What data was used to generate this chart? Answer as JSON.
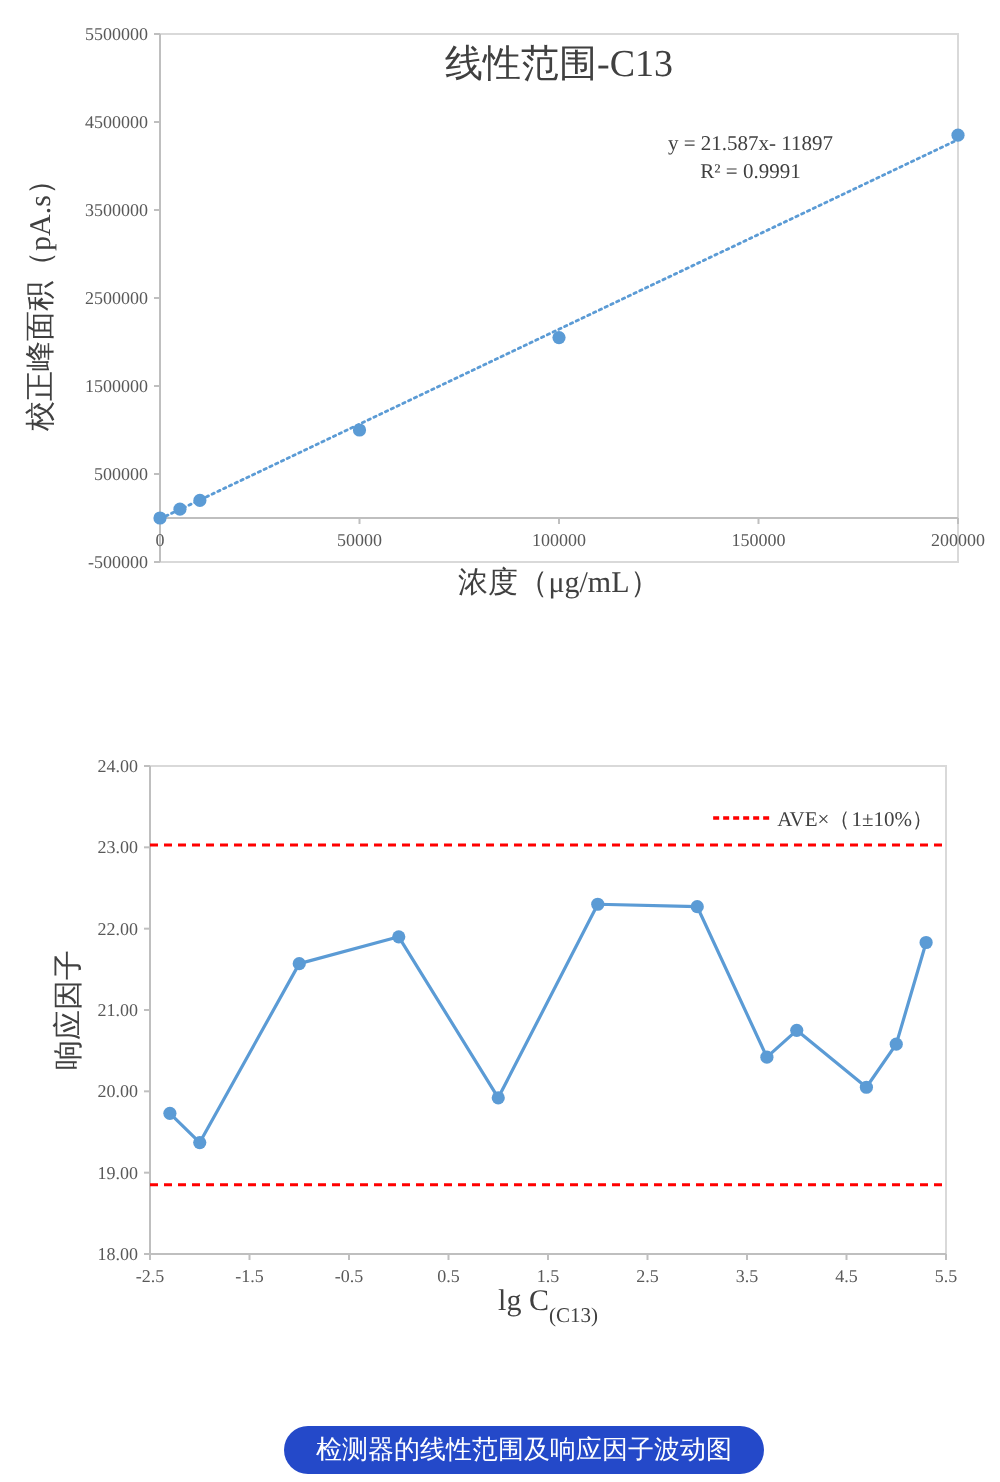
{
  "chart_data": [
    {
      "type": "scatter",
      "title": "线性范围-C13",
      "xlabel": "浓度（μg/mL）",
      "ylabel": "校正峰面积（pA.s）",
      "xlim": [
        0,
        200000
      ],
      "xticks": [
        0,
        50000,
        100000,
        150000,
        200000
      ],
      "ylim": [
        -500000,
        5500000
      ],
      "yticks": [
        -500000,
        500000,
        1500000,
        2500000,
        3500000,
        4500000,
        5500000
      ],
      "series": [
        {
          "color": "#5b9bd5",
          "marker": "circle",
          "x": [
            0,
            5000,
            10000,
            50000,
            100000,
            200000
          ],
          "values": [
            0,
            100000,
            200000,
            1000000,
            2050000,
            4350000
          ]
        },
        {
          "type": "line",
          "color": "#5b9bd5",
          "line_style": "dotted",
          "x": [
            0,
            200000
          ],
          "values": [
            -10000,
            4300000
          ]
        }
      ],
      "annotations": [
        "y = 21.587x- 11897",
        "R² = 0.9991"
      ]
    },
    {
      "type": "line",
      "xlabel": "lg C$_{(C13)}$",
      "ylabel": "响应因子",
      "xlim": [
        -2.5,
        5.5
      ],
      "xticks": [
        -2.5,
        -1.5,
        -0.5,
        0.5,
        1.5,
        2.5,
        3.5,
        4.5,
        5.5
      ],
      "ylim": [
        18,
        24
      ],
      "yticks": [
        {
          "value": 18,
          "label": "18.00"
        },
        {
          "value": 19,
          "label": "19.00"
        },
        {
          "value": 20,
          "label": "20.00"
        },
        {
          "value": 21,
          "label": "21.00"
        },
        {
          "value": 22,
          "label": "22.00"
        },
        {
          "value": 23,
          "label": "23.00"
        },
        {
          "value": 24,
          "label": "24.00"
        }
      ],
      "marker": "circle",
      "line_style": "solid",
      "legend": "top right",
      "series": [
        {
          "color": "#5b9bd5",
          "x": [
            -2.3,
            -2,
            -1,
            0,
            1,
            2,
            3,
            3.7,
            4,
            4.7,
            5,
            5.3
          ],
          "values": [
            19.73,
            19.37,
            21.57,
            21.9,
            19.92,
            22.3,
            22.27,
            20.42,
            20.75,
            20.05,
            20.58,
            21.83
          ]
        }
      ],
      "ref_lines": [
        {
          "axis": "y",
          "value": 23.03,
          "label": "AVE×（1±10%）",
          "color": "#ff0000",
          "line_style": "dashed"
        },
        {
          "axis": "y",
          "value": 18.85,
          "color": "#ff0000",
          "line_style": "dashed"
        }
      ],
      "annotations": [
        "检测器的线性范围及响应因子波动图"
      ]
    }
  ]
}
